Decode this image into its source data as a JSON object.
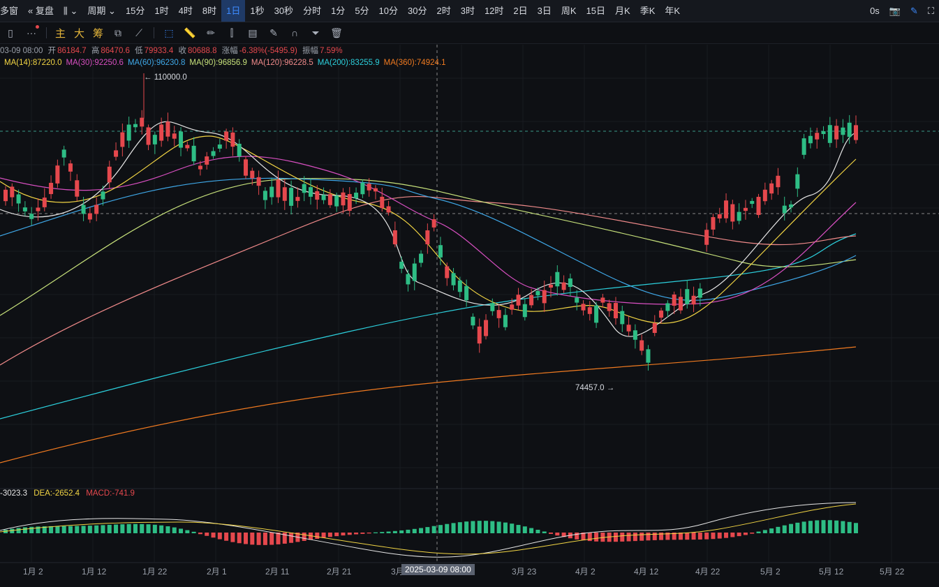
{
  "toolbar": {
    "left_cut": "多窗",
    "fuquan": "复盘",
    "period_label": "周期",
    "periods": [
      "15分",
      "1时",
      "4时",
      "8时",
      "1日",
      "1秒",
      "30秒",
      "分时",
      "1分",
      "5分",
      "10分",
      "30分",
      "2时",
      "3时",
      "12时",
      "2日",
      "3日",
      "周K",
      "15日",
      "月K",
      "季K",
      "年K"
    ],
    "active_period": "1日",
    "countdown": "0s"
  },
  "toolbar2": {
    "main": "主",
    "big": "大",
    "chips": "筹"
  },
  "ohlc": {
    "date": "03-09 08:00",
    "open_label": "开",
    "open": "86184.7",
    "high_label": "高",
    "high": "86470.6",
    "low_label": "低",
    "low": "79933.4",
    "close_label": "收",
    "close": "80688.8",
    "change_label": "涨幅",
    "change": "-6.38%(-5495.9)",
    "amp_label": "振幅",
    "amp": "7.59%"
  },
  "ma": [
    {
      "label": "MA(14):87220.0",
      "color": "#f2d544"
    },
    {
      "label": "MA(30):92250.6",
      "color": "#d84fc1"
    },
    {
      "label": "MA(60):96230.8",
      "color": "#3fa8e8"
    },
    {
      "label": "MA(90):96856.9",
      "color": "#c6e07a"
    },
    {
      "label": "MA(120):96228.5",
      "color": "#f08a8a"
    },
    {
      "label": "MA(200):83255.9",
      "color": "#2cd0dd"
    },
    {
      "label": "MA(360):74924.1",
      "color": "#f07a20"
    }
  ],
  "macd": {
    "dif": "-3023.3",
    "dea": "DEA:-2652.4",
    "macd": "MACD:-741.9"
  },
  "price_labels": {
    "high": "110000.0",
    "low": "74457.0"
  },
  "x_labels": [
    "1月 2",
    "1月 12",
    "1月 22",
    "2月 1",
    "2月 11",
    "2月 21",
    "3月",
    "3月 23",
    "4月 2",
    "4月 12",
    "4月 22",
    "5月 2",
    "5月 12",
    "5月 22"
  ],
  "crosshair_date": "2025-03-09 08:00",
  "colors": {
    "up": "#2ebd85",
    "down": "#e5484d",
    "accent": "#3d8bff"
  }
}
